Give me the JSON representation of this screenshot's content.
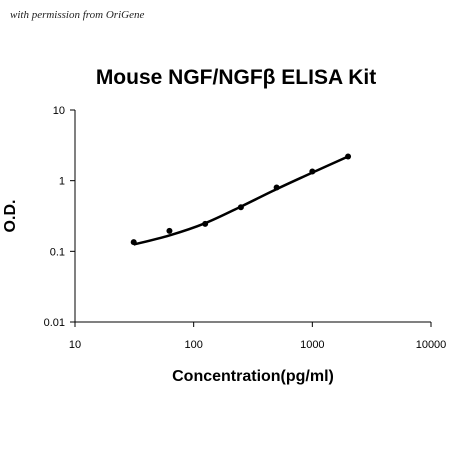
{
  "permission_note": "with permission from OriGene",
  "chart_data": {
    "type": "scatter",
    "title": "Mouse NGF/NGFβ ELISA Kit",
    "xlabel": "Concentration(pg/ml)",
    "ylabel": "O.D.",
    "x_scale": "log",
    "y_scale": "log",
    "xlim": [
      10,
      10000
    ],
    "ylim": [
      0.01,
      10
    ],
    "x_ticks": [
      "10",
      "100",
      "1000",
      "10000"
    ],
    "y_ticks": [
      "0.01",
      "0.1",
      "1",
      "10"
    ],
    "grid": false,
    "legend": "none",
    "series": [
      {
        "x": [
          31.25,
          62.5,
          125,
          250,
          500,
          1000,
          2000
        ],
        "y": [
          0.135,
          0.195,
          0.245,
          0.42,
          0.8,
          1.35,
          2.2
        ]
      }
    ],
    "fit_curve": {
      "x": [
        31.25,
        62.5,
        125,
        250,
        500,
        1000,
        2000
      ],
      "y": [
        0.125,
        0.168,
        0.25,
        0.43,
        0.76,
        1.3,
        2.2
      ]
    },
    "colors": {
      "points": "#000000",
      "curve": "#000000",
      "axes": "#000000"
    }
  }
}
